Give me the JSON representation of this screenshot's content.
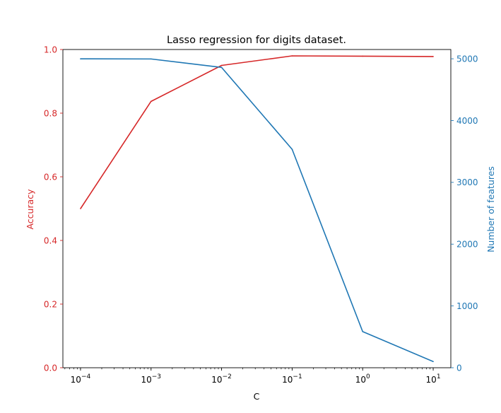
{
  "chart_data": {
    "type": "line",
    "title": "Lasso regression for digits dataset.",
    "xlabel": "C",
    "x_scale": "log",
    "x": [
      0.0001,
      0.001,
      0.01,
      0.1,
      1,
      10
    ],
    "x_tick_labels": [
      {
        "base": "10",
        "exp": "−4"
      },
      {
        "base": "10",
        "exp": "−3"
      },
      {
        "base": "10",
        "exp": "−2"
      },
      {
        "base": "10",
        "exp": "−1"
      },
      {
        "base": "10",
        "exp": "0"
      },
      {
        "base": "10",
        "exp": "1"
      }
    ],
    "y_left": {
      "label": "Accuracy",
      "color": "#d62728",
      "ylim": [
        0,
        1
      ],
      "ticks": [
        0.0,
        0.2,
        0.4,
        0.6,
        0.8,
        1.0
      ],
      "tick_labels": [
        "0.0",
        "0.2",
        "0.4",
        "0.6",
        "0.8",
        "1.0"
      ]
    },
    "y_right": {
      "label": "Number of features",
      "color": "#1f77b4",
      "ylim": [
        0,
        5150
      ],
      "ticks": [
        0,
        1000,
        2000,
        3000,
        4000,
        5000
      ],
      "tick_labels": [
        "0",
        "1000",
        "2000",
        "3000",
        "4000",
        "5000"
      ]
    },
    "series": [
      {
        "axis": "left",
        "color": "#d62728",
        "values": [
          0.5,
          0.837,
          0.95,
          0.98,
          0.979,
          0.978
        ]
      },
      {
        "axis": "right",
        "color": "#1f77b4",
        "values": [
          4999,
          4997,
          4860,
          3535,
          585,
          100
        ]
      }
    ],
    "grid": false
  }
}
